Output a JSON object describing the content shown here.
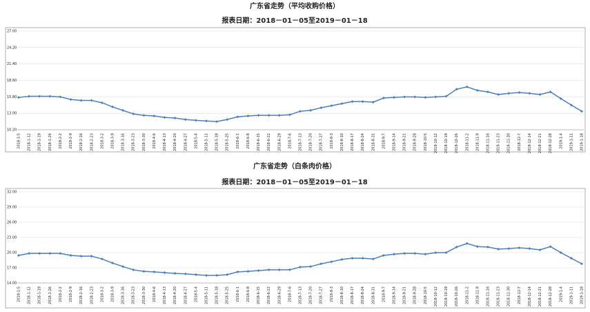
{
  "chart_data": [
    {
      "type": "line",
      "title": "广东省走势（平均收购价格）",
      "subtitle": "报表日期：2018－01－05至2019－01－18",
      "categories": [
        "2018-1-5",
        "2018-1-12",
        "2018-1-19",
        "2018-1-26",
        "2018-2-2",
        "2018-2-9",
        "2018-2-16",
        "2018-2-23",
        "2018-3-2",
        "2018-3-9",
        "2018-3-16",
        "2018-3-23",
        "2018-3-30",
        "2018-4-6",
        "2018-4-13",
        "2018-4-20",
        "2018-4-27",
        "2018-5-4",
        "2018-5-11",
        "2018-5-18",
        "2018-5-25",
        "2018-6-1",
        "2018-6-8",
        "2018-6-15",
        "2018-6-22",
        "2018-6-29",
        "2018-7-6",
        "2018-7-13",
        "2018-7-20",
        "2018-7-27",
        "2018-8-3",
        "2018-8-10",
        "2018-8-17",
        "2018-8-24",
        "2018-8-31",
        "2018-9-7",
        "2018-9-14",
        "2018-9-21",
        "2018-9-28",
        "2018-10-5",
        "2018-10-12",
        "2018-10-19",
        "2018-10-26",
        "2018-11-2",
        "2018-11-9",
        "2018-11-16",
        "2018-11-23",
        "2018-11-30",
        "2018-12-7",
        "2018-12-14",
        "2018-12-21",
        "2018-12-28",
        "2019-1-4",
        "2019-1-11",
        "2019-1-18"
      ],
      "series": [
        {
          "color": "#4a7ebb",
          "values": [
            15.7,
            15.9,
            15.9,
            15.9,
            15.8,
            15.35,
            15.2,
            15.2,
            14.8,
            14.1,
            13.5,
            12.9,
            12.65,
            12.55,
            12.3,
            12.2,
            11.95,
            11.8,
            11.7,
            11.6,
            11.95,
            12.4,
            12.55,
            12.65,
            12.65,
            12.65,
            12.75,
            13.35,
            13.5,
            13.95,
            14.3,
            14.65,
            15.0,
            15.0,
            14.9,
            15.6,
            15.7,
            15.8,
            15.8,
            15.7,
            15.8,
            15.9,
            17.1,
            17.5,
            16.9,
            16.65,
            16.2,
            16.4,
            16.55,
            16.4,
            16.2,
            16.65,
            15.5,
            14.4,
            13.35
          ]
        }
      ],
      "ylim": [
        10.2,
        27
      ],
      "yticks": [
        {
          "value": 10.2,
          "label": "10.20"
        },
        {
          "value": 13,
          "label": "13.00"
        },
        {
          "value": 15.8,
          "label": "15.80"
        },
        {
          "value": 18.6,
          "label": "18.60"
        },
        {
          "value": 21.4,
          "label": "21.40"
        },
        {
          "value": 24.2,
          "label": "24.20"
        },
        {
          "value": 27,
          "label": "27.00"
        }
      ],
      "grid": true
    },
    {
      "type": "line",
      "title": "广东省走势（白条肉价格）",
      "subtitle": "报表日期：2018－01－05至2019－01－18",
      "categories": [
        "2018-1-5",
        "2018-1-12",
        "2018-1-19",
        "2018-1-26",
        "2018-2-2",
        "2018-2-9",
        "2018-2-16",
        "2018-2-23",
        "2018-3-2",
        "2018-3-9",
        "2018-3-16",
        "2018-3-23",
        "2018-3-30",
        "2018-4-6",
        "2018-4-13",
        "2018-4-20",
        "2018-4-27",
        "2018-5-4",
        "2018-5-11",
        "2018-5-18",
        "2018-5-25",
        "2018-6-1",
        "2018-6-8",
        "2018-6-15",
        "2018-6-22",
        "2018-6-29",
        "2018-7-6",
        "2018-7-13",
        "2018-7-20",
        "2018-7-27",
        "2018-8-3",
        "2018-8-10",
        "2018-8-17",
        "2018-8-24",
        "2018-8-31",
        "2018-9-7",
        "2018-9-14",
        "2018-9-21",
        "2018-9-28",
        "2018-10-5",
        "2018-10-12",
        "2018-10-19",
        "2018-10-26",
        "2018-11-2",
        "2018-11-9",
        "2018-11-16",
        "2018-11-23",
        "2018-11-30",
        "2018-12-7",
        "2018-12-14",
        "2018-12-21",
        "2018-12-28",
        "2019-1-4",
        "2019-1-11",
        "2019-1-18"
      ],
      "series": [
        {
          "color": "#4a7ebb",
          "values": [
            19.45,
            19.85,
            19.85,
            19.85,
            19.85,
            19.45,
            19.3,
            19.3,
            18.75,
            17.95,
            17.25,
            16.6,
            16.3,
            16.2,
            16.05,
            15.9,
            15.8,
            15.65,
            15.5,
            15.5,
            15.65,
            16.2,
            16.3,
            16.45,
            16.6,
            16.6,
            16.6,
            17.15,
            17.25,
            17.8,
            18.2,
            18.65,
            18.9,
            18.9,
            18.75,
            19.45,
            19.7,
            19.85,
            19.85,
            19.7,
            20.0,
            20.0,
            21.1,
            21.8,
            21.2,
            21.1,
            20.7,
            20.8,
            20.95,
            20.8,
            20.55,
            21.2,
            20.0,
            18.9,
            17.8
          ]
        }
      ],
      "ylim": [
        14,
        32
      ],
      "yticks": [
        {
          "value": 14,
          "label": "14.00"
        },
        {
          "value": 17,
          "label": "17.00"
        },
        {
          "value": 20,
          "label": "20.00"
        },
        {
          "value": 23,
          "label": "23.00"
        },
        {
          "value": 26,
          "label": "26.00"
        },
        {
          "value": 29,
          "label": "29.00"
        },
        {
          "value": 32,
          "label": "32.00"
        }
      ],
      "grid": true
    }
  ]
}
